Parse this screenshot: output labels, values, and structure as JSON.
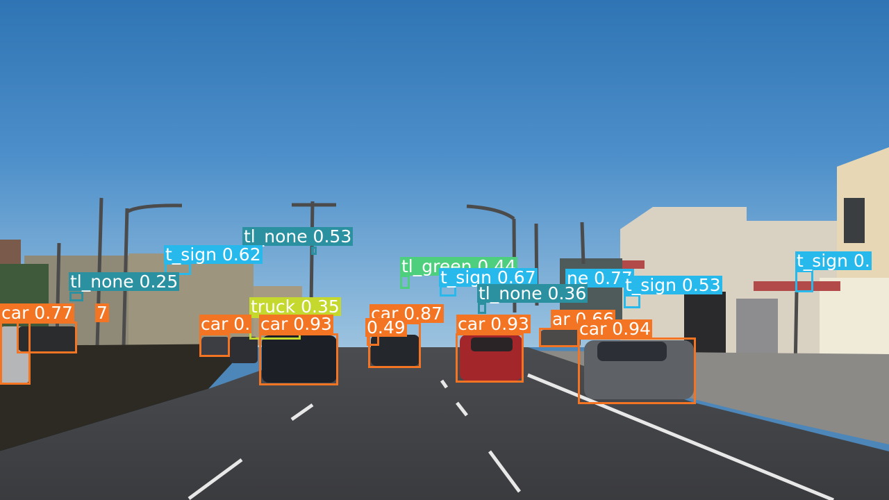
{
  "class_colors": {
    "car": "#f37524",
    "truck": "#c4d82e",
    "t_sign": "#28b9ec",
    "tl_none": "#2b91a0",
    "tl_green": "#4ecf7d"
  },
  "detections": [
    {
      "label": "tl_none 0.53",
      "class": "tl_none"
    },
    {
      "label": "t_sign 0.62",
      "class": "t_sign"
    },
    {
      "label": "tl_none 0.25",
      "class": "tl_none"
    },
    {
      "label": "tl_green 0.44",
      "class": "tl_green"
    },
    {
      "label": "t_sign 0.67",
      "class": "t_sign"
    },
    {
      "label": "ne 0.77",
      "class": "t_sign"
    },
    {
      "label": "t_sign 0.53",
      "class": "t_sign"
    },
    {
      "label": "t_sign 0.",
      "class": "t_sign"
    },
    {
      "label": "tl_none 0.36",
      "class": "tl_none"
    },
    {
      "label": "truck 0.35",
      "class": "truck"
    },
    {
      "label": "car 0.77",
      "class": "car"
    },
    {
      "label": "7",
      "class": "car"
    },
    {
      "label": "car 0.",
      "class": "car"
    },
    {
      "label": "car 0.93",
      "class": "car"
    },
    {
      "label": "car 0.87",
      "class": "car"
    },
    {
      "label": "0.49",
      "class": "car"
    },
    {
      "label": "car 0.93",
      "class": "car"
    },
    {
      "label": "ar 0.66",
      "class": "car"
    },
    {
      "label": "car 0.94",
      "class": "car"
    }
  ]
}
